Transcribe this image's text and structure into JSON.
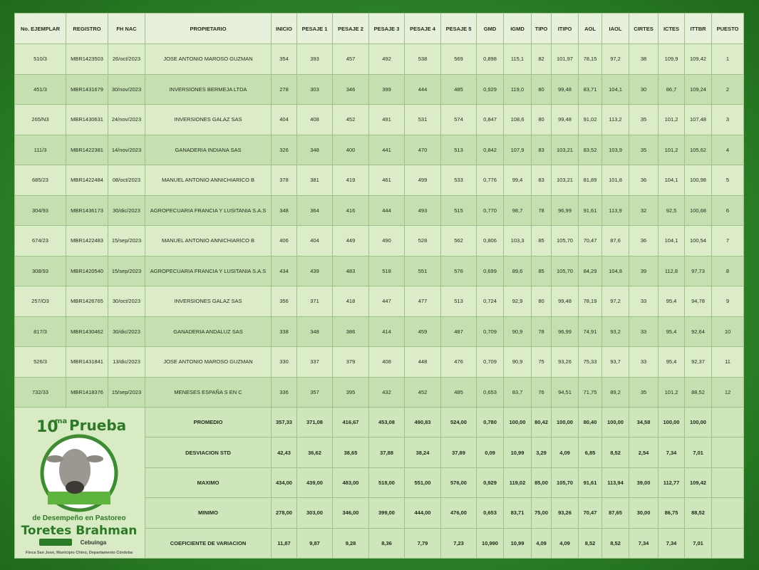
{
  "table": {
    "header": [
      "No. EJEMPLAR",
      "REGISTRO",
      "FH  NAC",
      "PROPIETARIO",
      "INICIO",
      "PESAJE 1",
      "PESAJE 2",
      "PESAJE 3",
      "PESAJE 4",
      "PESAJE 5",
      "GMD",
      "IGMD",
      "TIPO",
      "ITIPO",
      "AOL",
      "IAOL",
      "CIRTES",
      "ICTES",
      "ITTBR",
      "PUESTO"
    ],
    "rows": [
      [
        "510/3",
        "MBR1423503",
        "26/oct/2023",
        "JOSE ANTONIO MAROSO GUZMAN",
        "354",
        "393",
        "457",
        "492",
        "538",
        "569",
        "0,898",
        "115,1",
        "82",
        "101,97",
        "78,15",
        "97,2",
        "38",
        "109,9",
        "109,42",
        "1"
      ],
      [
        "451/3",
        "MBR1431679",
        "30/nov/2023",
        "INVERSIONES BERMEJA LTDA",
        "278",
        "303",
        "346",
        "399",
        "444",
        "485",
        "0,929",
        "119,0",
        "80",
        "99,48",
        "83,71",
        "104,1",
        "30",
        "86,7",
        "109,24",
        "2"
      ],
      [
        "265/N3",
        "MBR1430631",
        "24/nov/2023",
        "INVERSIONES GALAZ SAS",
        "404",
        "408",
        "452",
        "491",
        "531",
        "574",
        "0,847",
        "108,6",
        "80",
        "99,48",
        "91,02",
        "113,2",
        "35",
        "101,2",
        "107,48",
        "3"
      ],
      [
        "111/3",
        "MBR1422381",
        "14/nov/2023",
        "GANADERIA INDIANA SAS",
        "326",
        "348",
        "400",
        "441",
        "470",
        "513",
        "0,842",
        "107,9",
        "83",
        "103,21",
        "83,52",
        "103,9",
        "35",
        "101,2",
        "105,62",
        "4"
      ],
      [
        "685/23",
        "MBR1422484",
        "08/oct/2023",
        "MANUEL ANTONIO ANNICHIARICO B",
        "378",
        "381",
        "419",
        "461",
        "499",
        "533",
        "0,776",
        "99,4",
        "83",
        "103,21",
        "81,89",
        "101,8",
        "36",
        "104,1",
        "100,98",
        "5"
      ],
      [
        "304/93",
        "MBR1436173",
        "30/dic/2023",
        "AGROPECUARIA FRANCIA Y LUSITANIA S.A.S",
        "348",
        "364",
        "416",
        "444",
        "493",
        "515",
        "0,770",
        "98,7",
        "78",
        "96,99",
        "91,61",
        "113,9",
        "32",
        "92,5",
        "100,68",
        "6"
      ],
      [
        "674/23",
        "MBR1422483",
        "15/sep/2023",
        "MANUEL ANTONIO ANNICHIARICO B",
        "406",
        "404",
        "449",
        "490",
        "528",
        "562",
        "0,806",
        "103,3",
        "85",
        "105,70",
        "70,47",
        "87,6",
        "36",
        "104,1",
        "100,54",
        "7"
      ],
      [
        "308/93",
        "MBR1420540",
        "15/sep/2023",
        "AGROPECUARIA FRANCIA Y LUSITANIA S.A.S",
        "434",
        "439",
        "483",
        "518",
        "551",
        "576",
        "0,699",
        "89,6",
        "85",
        "105,70",
        "84,29",
        "104,8",
        "39",
        "112,8",
        "97,73",
        "8"
      ],
      [
        "257/O3",
        "MBR1426765",
        "30/oct/2023",
        "INVERSIONES GALAZ SAS",
        "356",
        "371",
        "418",
        "447",
        "477",
        "513",
        "0,724",
        "92,9",
        "80",
        "99,48",
        "78,19",
        "97,2",
        "33",
        "95,4",
        "94,78",
        "9"
      ],
      [
        "817/3",
        "MBR1430462",
        "30/dic/2023",
        "GANADERIA ANDALUZ SAS",
        "338",
        "348",
        "386",
        "414",
        "459",
        "487",
        "0,709",
        "90,9",
        "78",
        "96,99",
        "74,91",
        "93,2",
        "33",
        "95,4",
        "92,64",
        "10"
      ],
      [
        "526/3",
        "MBR1431841",
        "13/dic/2023",
        "JOSE ANTONIO MAROSO GUZMAN",
        "330",
        "337",
        "379",
        "408",
        "448",
        "476",
        "0,709",
        "90,9",
        "75",
        "93,26",
        "75,33",
        "93,7",
        "33",
        "95,4",
        "92,37",
        "11"
      ],
      [
        "732/33",
        "MBR1418376",
        "15/sep/2023",
        "MENESES ESPAÑA S EN C",
        "336",
        "357",
        "395",
        "432",
        "452",
        "485",
        "0,653",
        "83,7",
        "76",
        "94,51",
        "71,75",
        "89,2",
        "35",
        "101,2",
        "88,52",
        "12"
      ]
    ],
    "summary": [
      {
        "label": "PROMEDIO",
        "values": [
          "357,33",
          "371,08",
          "416,67",
          "453,08",
          "490,83",
          "524,00",
          "0,780",
          "100,00",
          "80,42",
          "100,00",
          "80,40",
          "100,00",
          "34,58",
          "100,00",
          "100,00"
        ]
      },
      {
        "label": "DESVIACION STD",
        "values": [
          "42,43",
          "36,62",
          "38,65",
          "37,88",
          "38,24",
          "37,89",
          "0,09",
          "10,99",
          "3,29",
          "4,09",
          "6,85",
          "8,52",
          "2,54",
          "7,34",
          "7,01"
        ]
      },
      {
        "label": "MAXIMO",
        "values": [
          "434,00",
          "439,00",
          "483,00",
          "518,00",
          "551,00",
          "576,00",
          "0,929",
          "119,02",
          "85,00",
          "105,70",
          "91,61",
          "113,94",
          "39,00",
          "112,77",
          "109,42"
        ]
      },
      {
        "label": "MINIMO",
        "values": [
          "278,00",
          "303,00",
          "346,00",
          "399,00",
          "444,00",
          "476,00",
          "0,653",
          "83,71",
          "75,00",
          "93,26",
          "70,47",
          "87,65",
          "30,00",
          "86,75",
          "88,52"
        ]
      },
      {
        "label": "COEFICIENTE DE VARIACION",
        "values": [
          "11,87",
          "9,87",
          "9,28",
          "8,36",
          "7,79",
          "7,23",
          "10,990",
          "10,99",
          "4,09",
          "4,09",
          "8,52",
          "8,52",
          "7,34",
          "7,34",
          "7,01"
        ]
      }
    ]
  },
  "logo": {
    "number": "10",
    "suffix": "ma",
    "word": "Prueba",
    "subtitle": "de Desempeño en Pastoreo",
    "title": "Toretes Brahman",
    "sponsor": "Cebuinga",
    "location": "Finca San José, Municipio Chinú, Departamento Córdoba"
  }
}
